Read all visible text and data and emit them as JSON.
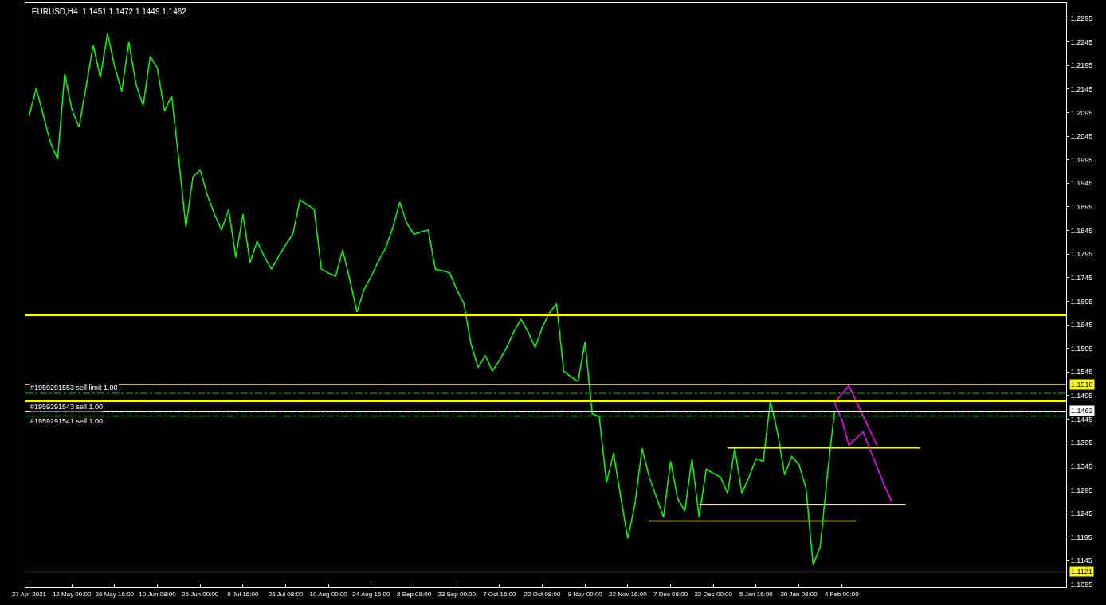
{
  "chart_data": {
    "type": "line",
    "title": "EURUSD,H4  1.1451 1.1472 1.1449 1.1462",
    "categories": [
      "27 Apr 2021",
      null,
      null,
      null,
      null,
      null,
      "12 May 00:00",
      null,
      null,
      null,
      null,
      null,
      "26 May 16:00",
      null,
      null,
      null,
      null,
      null,
      "10 Jun 08:00",
      null,
      null,
      null,
      null,
      null,
      "25 Jun 00:00",
      null,
      null,
      null,
      null,
      null,
      "9 Jul 16:00",
      null,
      null,
      null,
      null,
      null,
      "26 Jul 08:00",
      null,
      null,
      null,
      null,
      null,
      "10 Aug 00:00",
      null,
      null,
      null,
      null,
      null,
      "24 Aug 16:00",
      null,
      null,
      null,
      null,
      null,
      "8 Sep 08:00",
      null,
      null,
      null,
      null,
      null,
      "23 Sep 00:00",
      null,
      null,
      null,
      null,
      null,
      "7 Oct 16:00",
      null,
      null,
      null,
      null,
      null,
      "22 Oct 08:00",
      null,
      null,
      null,
      null,
      null,
      "8 Nov 00:00",
      null,
      null,
      null,
      null,
      null,
      "22 Nov 16:00",
      null,
      null,
      null,
      null,
      null,
      "7 Dec 08:00",
      null,
      null,
      null,
      null,
      null,
      "22 Dec 00:00",
      null,
      null,
      null,
      null,
      null,
      "5 Jan 16:00",
      null,
      null,
      null,
      null,
      null,
      "20 Jan 08:00",
      null,
      null,
      null,
      null,
      null,
      "4 Feb 00:00",
      null,
      null,
      null,
      null,
      null,
      null,
      null,
      null,
      null,
      null,
      null,
      null,
      null,
      null,
      null,
      null,
      null,
      null,
      null,
      null,
      null,
      null,
      null,
      null,
      null,
      null,
      null,
      null,
      null,
      null,
      null
    ],
    "ylim": [
      1.1088,
      1.2327
    ],
    "yticks": [
      1.1095,
      1.1145,
      1.1195,
      1.1245,
      1.1295,
      1.1345,
      1.1395,
      1.1445,
      1.1495,
      1.1545,
      1.1595,
      1.1645,
      1.1695,
      1.1745,
      1.1795,
      1.1845,
      1.1895,
      1.1945,
      1.1995,
      1.2045,
      1.2095,
      1.2145,
      1.2195,
      1.2245,
      1.2295
    ],
    "grid": false,
    "marker": "none",
    "series": [
      {
        "color": "#00ff00",
        "values": [
          1.2088,
          1.2147,
          1.2089,
          1.2031,
          1.1996,
          1.2177,
          1.2102,
          1.2064,
          1.215,
          1.2238,
          1.217,
          1.2263,
          1.2193,
          1.214,
          1.2245,
          1.2155,
          1.211,
          1.2214,
          1.2189,
          1.2098,
          1.2131,
          1.1996,
          1.1853,
          1.1959,
          1.1974,
          1.192,
          1.188,
          1.1846,
          1.189,
          1.1788,
          1.188,
          1.1777,
          1.1822,
          1.179,
          1.1763,
          1.179,
          1.1815,
          1.1837,
          1.191,
          1.19,
          1.189,
          1.1763,
          1.1755,
          1.1748,
          1.1804,
          1.174,
          1.1672,
          1.172,
          1.1748,
          1.178,
          1.1807,
          1.185,
          1.1905,
          1.186,
          1.1837,
          1.1842,
          1.1846,
          1.1763,
          1.176,
          1.1755,
          1.172,
          1.169,
          1.1604,
          1.1555,
          1.158,
          1.1547,
          1.157,
          1.1597,
          1.163,
          1.1657,
          1.163,
          1.1597,
          1.164,
          1.167,
          1.169,
          1.1547,
          1.1535,
          1.1525,
          1.1609,
          1.1457,
          1.145,
          1.131,
          1.1373,
          1.128,
          1.1192,
          1.1265,
          1.1383,
          1.1322,
          1.128,
          1.1237,
          1.1356,
          1.1276,
          1.125,
          1.1361,
          1.1237,
          1.1339,
          1.133,
          1.1322,
          1.1288,
          1.1383,
          1.1288,
          1.1322,
          1.1361,
          1.1356,
          1.1483,
          1.1417,
          1.1327,
          1.1366,
          1.1349,
          1.1298,
          1.1136,
          1.1175,
          1.1327,
          1.1462,
          null,
          null,
          null,
          null,
          null,
          null,
          null,
          null,
          null,
          null,
          null,
          null,
          null,
          null,
          null,
          null,
          null,
          null,
          null,
          null,
          null,
          null,
          null,
          null,
          null,
          null,
          null,
          null,
          null,
          null,
          null,
          null
        ]
      },
      {
        "color": "#ffff00",
        "values": [
          null,
          null,
          null,
          null,
          null,
          null,
          null,
          null,
          null,
          null,
          null,
          null,
          null,
          null,
          null,
          null,
          null,
          null,
          null,
          null,
          null,
          null,
          null,
          null,
          null,
          null,
          null,
          null,
          null,
          null,
          null,
          null,
          null,
          null,
          null,
          null,
          null,
          null,
          null,
          null,
          null,
          null,
          null,
          null,
          null,
          null,
          null,
          null,
          null,
          null,
          null,
          null,
          null,
          null,
          null,
          null,
          null,
          null,
          null,
          null,
          null,
          null,
          null,
          null,
          null,
          null,
          null,
          null,
          null,
          null,
          null,
          null,
          null,
          null,
          null,
          null,
          null,
          null,
          null,
          null,
          null,
          null,
          null,
          null,
          null,
          null,
          null,
          null,
          null,
          null,
          null,
          null,
          null,
          null,
          null,
          null,
          null,
          null,
          1.1384,
          1.1384,
          1.1384,
          1.1384,
          1.1384,
          1.1384,
          1.1384,
          1.1384,
          1.1384,
          1.1384,
          1.1384,
          1.1384,
          1.1384,
          1.1384,
          1.1384,
          1.1384,
          1.1384,
          1.1384,
          1.1384,
          1.1384,
          1.1384,
          1.1384,
          1.1384,
          1.1384,
          1.1384,
          1.1384,
          1.1384,
          1.1384,
          null,
          null,
          null,
          null,
          null,
          null,
          null,
          null,
          null,
          null,
          null,
          null,
          null,
          null,
          null,
          null,
          null,
          null,
          null,
          null
        ]
      },
      {
        "color": "#ffff00",
        "values": [
          null,
          null,
          null,
          null,
          null,
          null,
          null,
          null,
          null,
          null,
          null,
          null,
          null,
          null,
          null,
          null,
          null,
          null,
          null,
          null,
          null,
          null,
          null,
          null,
          null,
          null,
          null,
          null,
          null,
          null,
          null,
          null,
          null,
          null,
          null,
          null,
          null,
          null,
          null,
          null,
          null,
          null,
          null,
          null,
          null,
          null,
          null,
          null,
          null,
          null,
          null,
          null,
          null,
          null,
          null,
          null,
          null,
          null,
          null,
          null,
          null,
          null,
          null,
          null,
          null,
          null,
          null,
          null,
          null,
          null,
          null,
          null,
          null,
          null,
          null,
          null,
          null,
          null,
          null,
          null,
          null,
          null,
          null,
          null,
          null,
          null,
          null,
          null,
          null,
          null,
          null,
          null,
          null,
          null,
          1.1264,
          1.1264,
          1.1264,
          1.1264,
          1.1264,
          1.1264,
          1.1264,
          1.1264,
          1.1264,
          1.1264,
          1.1264,
          1.1264,
          1.1264,
          1.1264,
          1.1264,
          1.1264,
          1.1264,
          1.1264,
          1.1264,
          1.1264,
          1.1264,
          1.1264,
          1.1264,
          1.1264,
          1.1264,
          1.1264,
          1.1264,
          1.1264,
          1.1264,
          1.1264,
          null,
          null,
          null,
          null,
          null,
          null,
          null,
          null,
          null,
          null,
          null,
          null,
          null,
          null,
          null,
          null,
          null,
          null,
          null,
          null,
          null,
          null
        ]
      },
      {
        "color": "#ffff00",
        "values": [
          null,
          null,
          null,
          null,
          null,
          null,
          null,
          null,
          null,
          null,
          null,
          null,
          null,
          null,
          null,
          null,
          null,
          null,
          null,
          null,
          null,
          null,
          null,
          null,
          null,
          null,
          null,
          null,
          null,
          null,
          null,
          null,
          null,
          null,
          null,
          null,
          null,
          null,
          null,
          null,
          null,
          null,
          null,
          null,
          null,
          null,
          null,
          null,
          null,
          null,
          null,
          null,
          null,
          null,
          null,
          null,
          null,
          null,
          null,
          null,
          null,
          null,
          null,
          null,
          null,
          null,
          null,
          null,
          null,
          null,
          null,
          null,
          null,
          null,
          null,
          null,
          null,
          null,
          null,
          null,
          null,
          null,
          null,
          null,
          null,
          null,
          null,
          1.1229,
          1.1229,
          1.1229,
          1.1229,
          1.1229,
          1.1229,
          1.1229,
          1.1229,
          1.1229,
          1.1229,
          1.1229,
          1.1229,
          1.1229,
          1.1229,
          1.1229,
          1.1229,
          1.1229,
          1.1229,
          1.1229,
          1.1229,
          1.1229,
          1.1229,
          1.1229,
          1.1229,
          1.1229,
          1.1229,
          1.1229,
          1.1229,
          1.1229,
          1.1229,
          null,
          null,
          null,
          null,
          null,
          null,
          null,
          null,
          null,
          null,
          null,
          null,
          null,
          null,
          null,
          null,
          null,
          null,
          null,
          null,
          null,
          null,
          null,
          null,
          null,
          null,
          null,
          null,
          null
        ]
      },
      {
        "color": "#ff00ff",
        "values": [
          null,
          null,
          null,
          null,
          null,
          null,
          null,
          null,
          null,
          null,
          null,
          null,
          null,
          null,
          null,
          null,
          null,
          null,
          null,
          null,
          null,
          null,
          null,
          null,
          null,
          null,
          null,
          null,
          null,
          null,
          null,
          null,
          null,
          null,
          null,
          null,
          null,
          null,
          null,
          null,
          null,
          null,
          null,
          null,
          null,
          null,
          null,
          null,
          null,
          null,
          null,
          null,
          null,
          null,
          null,
          null,
          null,
          null,
          null,
          null,
          null,
          null,
          null,
          null,
          null,
          null,
          null,
          null,
          null,
          null,
          null,
          null,
          null,
          null,
          null,
          null,
          null,
          null,
          null,
          null,
          null,
          null,
          null,
          null,
          null,
          null,
          null,
          null,
          null,
          null,
          null,
          null,
          null,
          null,
          null,
          null,
          null,
          null,
          null,
          null,
          null,
          null,
          null,
          null,
          null,
          null,
          null,
          null,
          null,
          null,
          null,
          null,
          null,
          1.1479,
          1.1498,
          1.1516,
          1.1484,
          1.1452,
          1.142,
          1.1388,
          null,
          null,
          null,
          null,
          null,
          null,
          null,
          null,
          null,
          null,
          null,
          null,
          null,
          null,
          null,
          null,
          null,
          null,
          null,
          null,
          null,
          null,
          null,
          null,
          null,
          null
        ]
      },
      {
        "color": "#ff00ff",
        "values": [
          null,
          null,
          null,
          null,
          null,
          null,
          null,
          null,
          null,
          null,
          null,
          null,
          null,
          null,
          null,
          null,
          null,
          null,
          null,
          null,
          null,
          null,
          null,
          null,
          null,
          null,
          null,
          null,
          null,
          null,
          null,
          null,
          null,
          null,
          null,
          null,
          null,
          null,
          null,
          null,
          null,
          null,
          null,
          null,
          null,
          null,
          null,
          null,
          null,
          null,
          null,
          null,
          null,
          null,
          null,
          null,
          null,
          null,
          null,
          null,
          null,
          null,
          null,
          null,
          null,
          null,
          null,
          null,
          null,
          null,
          null,
          null,
          null,
          null,
          null,
          null,
          null,
          null,
          null,
          null,
          null,
          null,
          null,
          null,
          null,
          null,
          null,
          null,
          null,
          null,
          null,
          null,
          null,
          null,
          null,
          null,
          null,
          null,
          null,
          null,
          null,
          null,
          null,
          null,
          null,
          null,
          null,
          null,
          null,
          null,
          null,
          null,
          null,
          1.1479,
          1.1445,
          1.139,
          1.1404,
          1.1418,
          1.138,
          1.1342,
          1.1304,
          1.1271,
          null,
          null,
          null,
          null,
          null,
          null,
          null,
          null,
          null,
          null,
          null,
          null,
          null,
          null,
          null,
          null,
          null,
          null,
          null,
          null,
          null,
          null,
          null,
          null
        ]
      }
    ],
    "ref_lines": [
      {
        "axis": "y",
        "value": 1.1666,
        "color": "#ffff00",
        "line_style": "solid"
      },
      {
        "axis": "y",
        "value": 1.1518,
        "label": "1.1518",
        "color": "#ffff00",
        "line_style": "solid"
      },
      {
        "axis": "y",
        "value": 1.1484,
        "color": "#ffff00",
        "line_style": "solid"
      },
      {
        "axis": "y",
        "value": 1.1121,
        "label": "1.1121",
        "color": "#ffff00",
        "line_style": "solid"
      },
      {
        "axis": "y",
        "value": 1.1462,
        "label": "1.1462",
        "color": "#ffffff",
        "line_style": "solid"
      },
      {
        "axis": "y",
        "value": 1.15,
        "label": "#1959291553 sell limit 1.00",
        "color": "#00c000",
        "line_style": "dashed"
      },
      {
        "axis": "y",
        "value": 1.146,
        "label": "#1959291543 sell 1.00",
        "color": "#00c000",
        "line_style": "dashed"
      },
      {
        "axis": "y",
        "value": 1.1452,
        "label": "#1959291541 sell 1.00",
        "color": "#00c000",
        "line_style": "dashed"
      }
    ]
  }
}
